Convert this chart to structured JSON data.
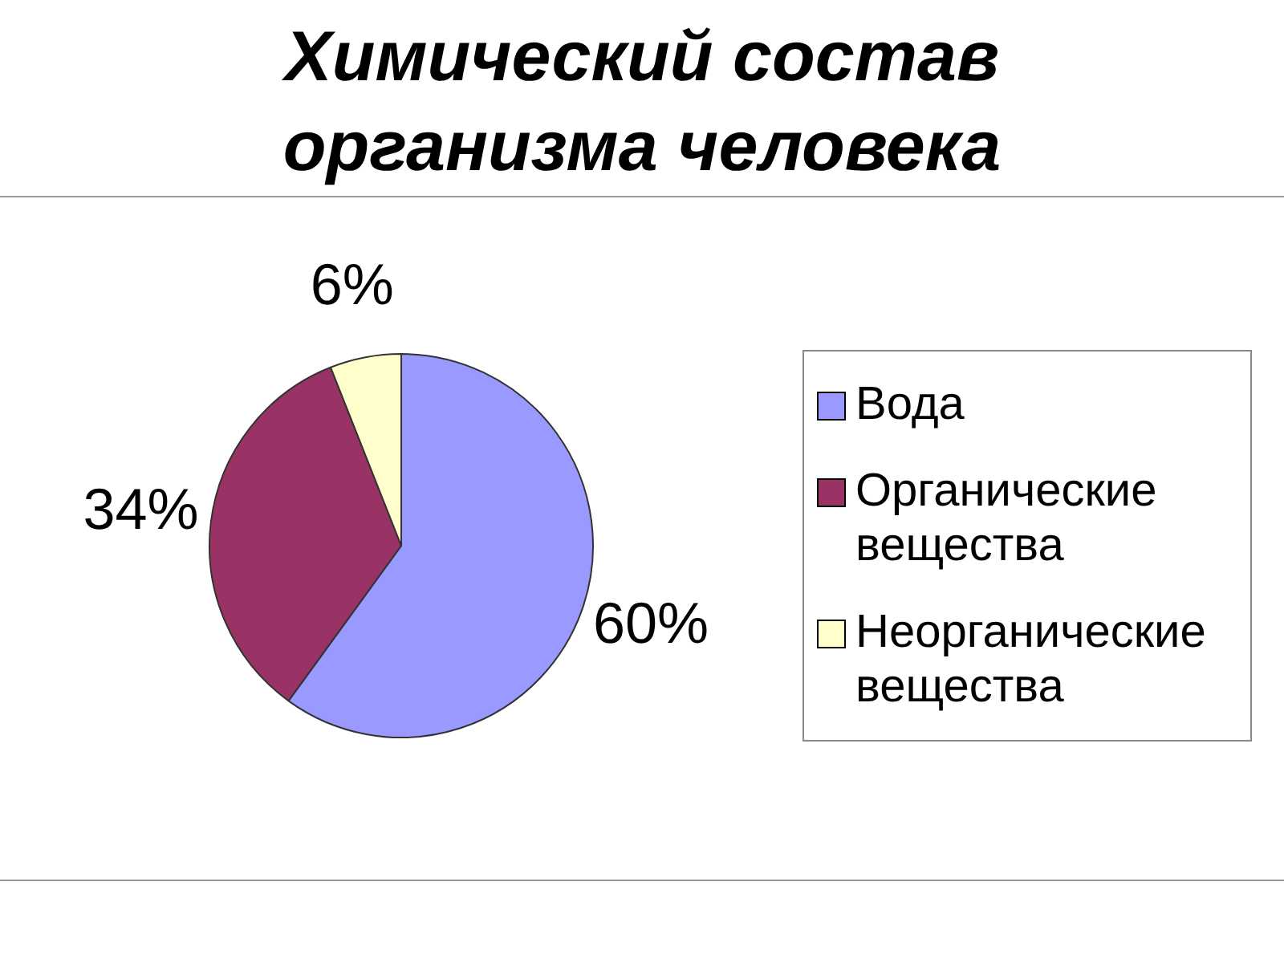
{
  "chart_data": {
    "type": "pie",
    "title": "Химический состав организма человека",
    "categories": [
      "Вода",
      "Органические вещества",
      "Неорганические вещества"
    ],
    "values": [
      60,
      34,
      6
    ],
    "value_labels": [
      "60%",
      "34%",
      "6%"
    ],
    "colors": [
      "#9999ff",
      "#993366",
      "#ffffcc"
    ],
    "legend": "right"
  }
}
